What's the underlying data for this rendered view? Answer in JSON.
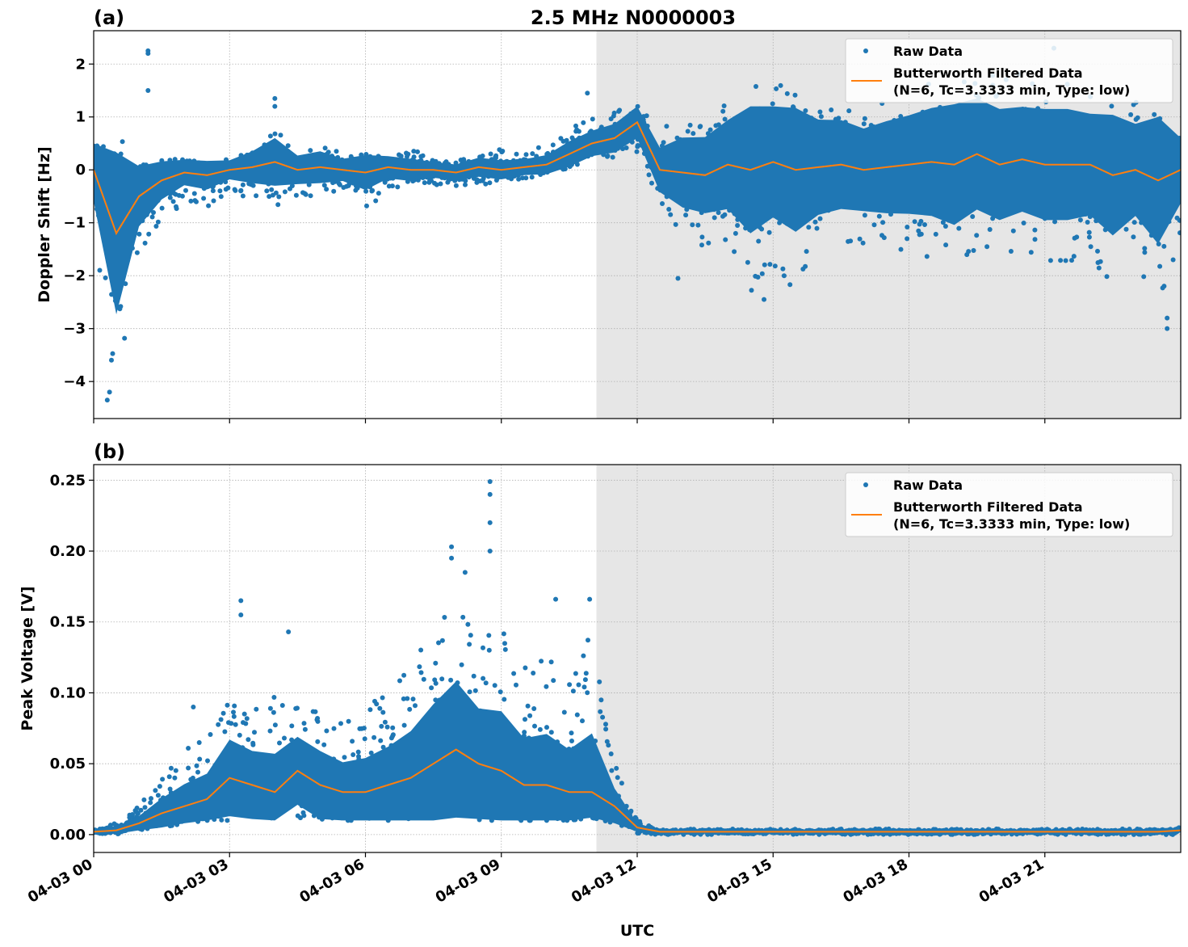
{
  "title": "2.5 MHz N0000003",
  "xlabel": "UTC",
  "x_tick_labels": [
    "04-03 00",
    "04-03 03",
    "04-03 06",
    "04-03 09",
    "04-03 12",
    "04-03 15",
    "04-03 18",
    "04-03 21"
  ],
  "legend": {
    "raw": "Raw Data",
    "filtered_line1": "Butterworth Filtered Data",
    "filtered_line2": "(N=6, Tc=3.3333 min, Type: low)"
  },
  "colors": {
    "raw": "#1f77b4",
    "filtered": "#ff7f0e",
    "shade": "#e6e6e6"
  },
  "chart_data": [
    {
      "type": "scatter",
      "panel_label": "(a)",
      "ylabel": "Doppler Shift [Hz]",
      "xlim": [
        0,
        24
      ],
      "ylim": [
        -4.7,
        2.63
      ],
      "y_ticks": [
        "2",
        "1",
        "0",
        "−1",
        "−2",
        "−3",
        "−4"
      ],
      "y_tick_values": [
        2,
        1,
        0,
        -1,
        -2,
        -3,
        -4
      ],
      "grid": true,
      "legend_position": "top-right",
      "shaded_x_range": [
        11.1,
        24
      ],
      "x": [
        0,
        0.5,
        1,
        1.5,
        2,
        2.5,
        3,
        3.5,
        4,
        4.5,
        5,
        5.5,
        6,
        6.5,
        7,
        7.5,
        8,
        8.5,
        9,
        9.5,
        10,
        10.5,
        11,
        11.5,
        12,
        12.5,
        13,
        13.5,
        14,
        14.5,
        15,
        15.5,
        16,
        16.5,
        17,
        17.5,
        18,
        18.5,
        19,
        19.5,
        20,
        20.5,
        21,
        21.5,
        22,
        22.5,
        23,
        23.5,
        24
      ],
      "series": [
        {
          "name": "Butterworth Filtered Data",
          "kind": "line",
          "values": [
            0,
            -1.2,
            -0.5,
            -0.2,
            -0.05,
            -0.1,
            0,
            0.05,
            0.15,
            0,
            0.05,
            0,
            -0.05,
            0.05,
            0,
            0,
            -0.05,
            0.05,
            0,
            0.05,
            0.1,
            0.3,
            0.5,
            0.6,
            0.9,
            0,
            -0.05,
            -0.1,
            0.1,
            0,
            0.15,
            0,
            0.05,
            0.1,
            0,
            0.05,
            0.1,
            0.15,
            0.1,
            0.3,
            0.1,
            0.2,
            0.1,
            0.1,
            0.1,
            -0.1,
            0,
            -0.2,
            0
          ]
        },
        {
          "name": "Raw Data",
          "kind": "scatter-envelope",
          "lower": [
            -1.5,
            -4.3,
            -1.7,
            -1.0,
            -0.6,
            -0.7,
            -0.4,
            -0.6,
            -0.7,
            -0.5,
            -0.5,
            -0.4,
            -0.8,
            -0.4,
            -0.3,
            -0.3,
            -0.3,
            -0.3,
            -0.2,
            -0.2,
            -0.1,
            0,
            0.2,
            0.2,
            0.3,
            -0.6,
            -1.3,
            -1.5,
            -1.4,
            -2.4,
            -1.8,
            -2.3,
            -1.6,
            -1.5,
            -1.4,
            -1.5,
            -1.6,
            -1.7,
            -2.2,
            -1.5,
            -1.6,
            -1.5,
            -1.9,
            -1.8,
            -1.7,
            -2.2,
            -1.6,
            -3.0,
            -1.5
          ],
          "upper": [
            0.5,
            0.8,
            0.2,
            0.2,
            0.2,
            0.2,
            0.2,
            0.4,
            0.8,
            0.4,
            0.5,
            0.3,
            0.3,
            0.3,
            0.4,
            0.2,
            0.2,
            0.3,
            0.4,
            0.3,
            0.5,
            0.8,
            1.0,
            1.1,
            1.3,
            0.8,
            0.9,
            0.9,
            1.4,
            1.6,
            1.7,
            1.6,
            1.4,
            1.3,
            1.2,
            1.4,
            1.5,
            1.7,
            1.6,
            2.0,
            1.9,
            1.8,
            1.6,
            1.7,
            1.5,
            1.6,
            1.3,
            1.0,
            0.6
          ]
        },
        {
          "name": "Raw Data outliers",
          "kind": "scatter",
          "points": [
            [
              1.2,
              2.25
            ],
            [
              1.2,
              2.2
            ],
            [
              1.2,
              1.5
            ],
            [
              4.0,
              1.35
            ],
            [
              4.0,
              1.2
            ],
            [
              10.9,
              1.45
            ],
            [
              0.3,
              -4.35
            ],
            [
              0.35,
              -4.2
            ],
            [
              12.9,
              -2.05
            ],
            [
              14.8,
              -2.45
            ],
            [
              23.7,
              -3.0
            ],
            [
              23.7,
              -2.8
            ],
            [
              21.2,
              2.3
            ]
          ]
        }
      ]
    },
    {
      "type": "scatter",
      "panel_label": "(b)",
      "ylabel": "Peak Voltage [V]",
      "xlim": [
        0,
        24
      ],
      "ylim": [
        -0.0126,
        0.261
      ],
      "y_ticks": [
        "0.00",
        "0.05",
        "0.10",
        "0.15",
        "0.20",
        "0.25"
      ],
      "y_tick_values": [
        0,
        0.05,
        0.1,
        0.15,
        0.2,
        0.25
      ],
      "grid": true,
      "legend_position": "top-right",
      "shaded_x_range": [
        11.1,
        24
      ],
      "x": [
        0,
        0.5,
        1,
        1.5,
        2,
        2.5,
        3,
        3.5,
        4,
        4.5,
        5,
        5.5,
        6,
        6.5,
        7,
        7.5,
        8,
        8.5,
        9,
        9.5,
        10,
        10.5,
        11,
        11.5,
        12,
        12.5,
        13,
        13.5,
        14,
        14.5,
        15,
        15.5,
        16,
        16.5,
        17,
        17.5,
        18,
        18.5,
        19,
        19.5,
        20,
        20.5,
        21,
        21.5,
        22,
        22.5,
        23,
        23.5,
        24
      ],
      "series": [
        {
          "name": "Butterworth Filtered Data",
          "kind": "line",
          "values": [
            0.002,
            0.003,
            0.008,
            0.015,
            0.02,
            0.025,
            0.04,
            0.035,
            0.03,
            0.045,
            0.035,
            0.03,
            0.03,
            0.035,
            0.04,
            0.05,
            0.06,
            0.05,
            0.045,
            0.035,
            0.035,
            0.03,
            0.03,
            0.02,
            0.005,
            0.002,
            0.002,
            0.002,
            0.002,
            0.002,
            0.002,
            0.002,
            0.002,
            0.002,
            0.002,
            0.002,
            0.002,
            0.002,
            0.002,
            0.002,
            0.002,
            0.002,
            0.002,
            0.002,
            0.002,
            0.002,
            0.002,
            0.002,
            0.003
          ]
        },
        {
          "name": "Raw Data",
          "kind": "scatter-envelope",
          "lower": [
            0,
            0,
            0.003,
            0.005,
            0.008,
            0.01,
            0.01,
            0.01,
            0.01,
            0.01,
            0.01,
            0.01,
            0.01,
            0.01,
            0.01,
            0.01,
            0.01,
            0.01,
            0.01,
            0.01,
            0.01,
            0.01,
            0.012,
            0.008,
            0,
            0,
            0,
            0,
            0,
            0,
            0,
            0,
            0,
            0,
            0,
            0,
            0,
            0,
            0,
            0,
            0,
            0,
            0,
            0,
            0,
            0,
            0,
            0,
            0
          ],
          "upper": [
            0.005,
            0.008,
            0.02,
            0.04,
            0.06,
            0.07,
            0.1,
            0.09,
            0.1,
            0.09,
            0.09,
            0.08,
            0.09,
            0.1,
            0.12,
            0.15,
            0.17,
            0.14,
            0.15,
            0.12,
            0.13,
            0.11,
            0.15,
            0.05,
            0.01,
            0.004,
            0.004,
            0.004,
            0.004,
            0.004,
            0.004,
            0.004,
            0.004,
            0.004,
            0.004,
            0.004,
            0.004,
            0.004,
            0.004,
            0.004,
            0.004,
            0.004,
            0.004,
            0.004,
            0.004,
            0.004,
            0.004,
            0.004,
            0.005
          ]
        },
        {
          "name": "Raw Data outliers",
          "kind": "scatter",
          "points": [
            [
              8.75,
              0.249
            ],
            [
              8.75,
              0.24
            ],
            [
              8.75,
              0.22
            ],
            [
              8.75,
              0.2
            ],
            [
              7.9,
              0.203
            ],
            [
              7.9,
              0.195
            ],
            [
              3.25,
              0.165
            ],
            [
              3.25,
              0.155
            ],
            [
              4.3,
              0.143
            ],
            [
              10.2,
              0.166
            ],
            [
              10.95,
              0.166
            ],
            [
              8.2,
              0.185
            ],
            [
              2.2,
              0.09
            ]
          ]
        }
      ]
    }
  ]
}
